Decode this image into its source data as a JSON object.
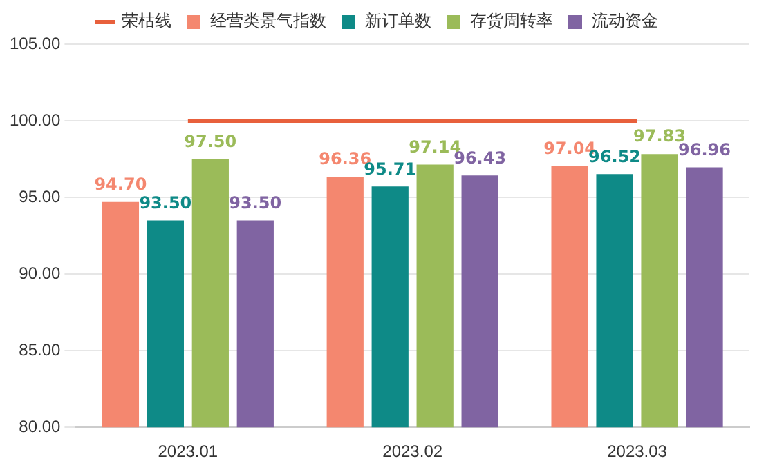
{
  "chart_data": {
    "type": "bar",
    "categories": [
      "2023.01",
      "2023.02",
      "2023.03"
    ],
    "series": [
      {
        "name": "经营类景气指数",
        "color": "#f4876f",
        "values": [
          94.7,
          96.36,
          97.04
        ],
        "value_labels": [
          "94.70",
          "96.36",
          "97.04"
        ]
      },
      {
        "name": "新订单数",
        "color": "#0e8a87",
        "values": [
          93.5,
          95.71,
          96.52
        ],
        "value_labels": [
          "93.50",
          "95.71",
          "96.52"
        ]
      },
      {
        "name": "存货周转率",
        "color": "#9bbb59",
        "values": [
          97.5,
          97.14,
          97.83
        ],
        "value_labels": [
          "97.50",
          "97.14",
          "97.83"
        ]
      },
      {
        "name": "流动资金",
        "color": "#8064a2",
        "values": [
          93.5,
          96.43,
          96.96
        ],
        "value_labels": [
          "93.50",
          "96.43",
          "96.96"
        ]
      },
      {
        "name": "荣枯线",
        "type": "line",
        "color": "#e8603c",
        "values": [
          100,
          100,
          100
        ],
        "marker": "none"
      }
    ],
    "ylim": [
      80,
      105
    ],
    "yticks": [
      {
        "value": 80,
        "label": "80.00"
      },
      {
        "value": 85,
        "label": "85.00"
      },
      {
        "value": 90,
        "label": "90.00"
      },
      {
        "value": 95,
        "label": "95.00"
      },
      {
        "value": 100,
        "label": "100.00"
      },
      {
        "value": 105,
        "label": "105.00"
      }
    ],
    "grid": "y",
    "legend": "top"
  }
}
